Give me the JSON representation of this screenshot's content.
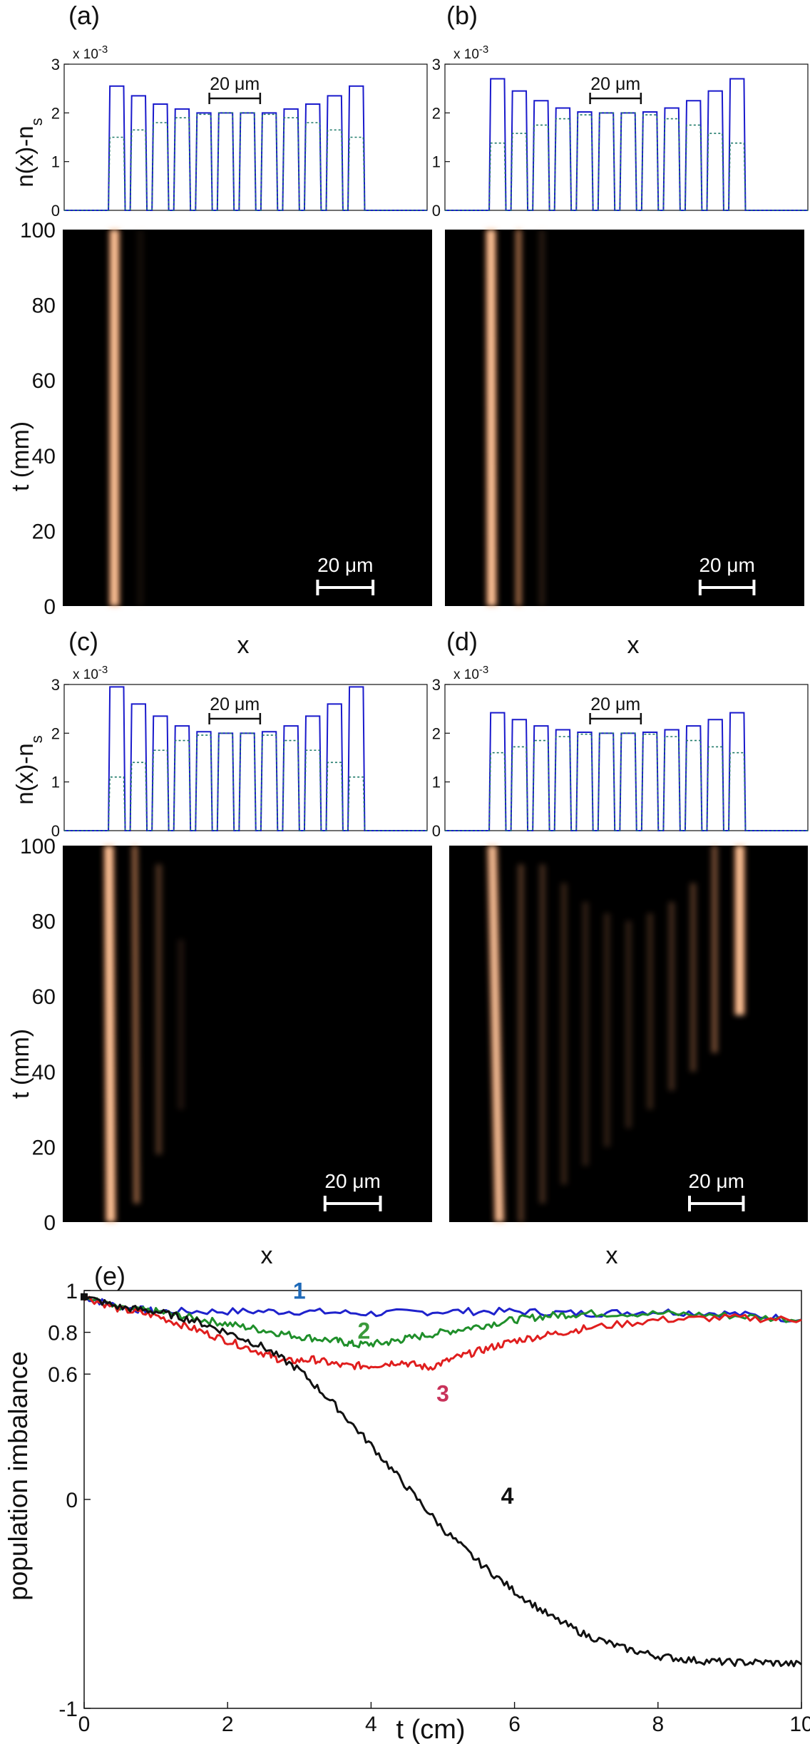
{
  "colors": {
    "profile_line": "#1a1acc",
    "profile_dash": "#1f7a6a",
    "heat_bg": "#000000",
    "glow": "#f4a06a",
    "glow_core": "#ffe0c0",
    "scale_bar_dark": "#111111",
    "scale_bar_light": "#ffffff",
    "series1": "#1f22cc",
    "series2": "#1f8f2a",
    "series3": "#e01e1e",
    "series4": "#111111",
    "label1": "#1f6ab8",
    "label2": "#3a9a3a",
    "label3": "#c8325a",
    "label4": "#111111"
  },
  "chart_data": [
    {
      "id": "a",
      "panel_label": "(a)",
      "type": "line",
      "ylabel": "n(x)-n",
      "ylabel_sub": "s",
      "exponent_label": "x 10",
      "exponent_power": "-3",
      "yticks": [
        "0",
        "1",
        "2",
        "3"
      ],
      "ylim": [
        0,
        3
      ],
      "xlim": [
        0,
        100
      ],
      "scale_bar_label": "20 μm",
      "scale_bar_x": [
        40,
        54
      ],
      "series": [
        {
          "name": "solid",
          "guides": [
            14.5,
            20.5,
            26.5,
            32.5,
            38.5,
            44.5,
            50.5,
            56.5,
            62.5,
            68.5,
            74.5,
            80.5
          ],
          "heights": [
            2.55,
            2.35,
            2.18,
            2.08,
            2.0,
            2.0,
            2.0,
            2.0,
            2.08,
            2.18,
            2.35,
            2.55
          ]
        },
        {
          "name": "dashed",
          "guides": [
            14.5,
            20.5,
            26.5,
            32.5,
            38.5,
            44.5,
            50.5,
            56.5,
            62.5,
            68.5,
            74.5,
            80.5
          ],
          "heights": [
            1.5,
            1.65,
            1.8,
            1.9,
            1.97,
            2.0,
            2.0,
            1.97,
            1.9,
            1.8,
            1.65,
            1.5
          ]
        }
      ]
    },
    {
      "id": "b",
      "panel_label": "(b)",
      "type": "line",
      "exponent_label": "x 10",
      "exponent_power": "-3",
      "yticks": [
        "0",
        "1",
        "2",
        "3"
      ],
      "ylim": [
        0,
        3
      ],
      "xlim": [
        0,
        100
      ],
      "scale_bar_label": "20 μm",
      "scale_bar_x": [
        40,
        54
      ],
      "series": [
        {
          "name": "solid",
          "guides": [
            14.5,
            20.5,
            26.5,
            32.5,
            38.5,
            44.5,
            50.5,
            56.5,
            62.5,
            68.5,
            74.5,
            80.5
          ],
          "heights": [
            2.7,
            2.45,
            2.25,
            2.1,
            2.02,
            2.0,
            2.0,
            2.02,
            2.1,
            2.25,
            2.45,
            2.7
          ]
        },
        {
          "name": "dashed",
          "guides": [
            14.5,
            20.5,
            26.5,
            32.5,
            38.5,
            44.5,
            50.5,
            56.5,
            62.5,
            68.5,
            74.5,
            80.5
          ],
          "heights": [
            1.38,
            1.58,
            1.75,
            1.88,
            1.96,
            2.0,
            2.0,
            1.96,
            1.88,
            1.75,
            1.58,
            1.38
          ]
        }
      ]
    },
    {
      "id": "c",
      "panel_label": "(c)",
      "type": "line",
      "ylabel": "n(x)-n",
      "ylabel_sub": "s",
      "exponent_label": "x 10",
      "exponent_power": "-3",
      "yticks": [
        "0",
        "1",
        "2",
        "3"
      ],
      "ylim": [
        0,
        3
      ],
      "xlim": [
        0,
        100
      ],
      "scale_bar_label": "20 μm",
      "scale_bar_x": [
        40,
        54
      ],
      "series": [
        {
          "name": "solid",
          "guides": [
            14.5,
            20.5,
            26.5,
            32.5,
            38.5,
            44.5,
            50.5,
            56.5,
            62.5,
            68.5,
            74.5,
            80.5
          ],
          "heights": [
            2.95,
            2.6,
            2.35,
            2.15,
            2.03,
            2.0,
            2.0,
            2.03,
            2.15,
            2.35,
            2.6,
            2.95
          ]
        },
        {
          "name": "dashed",
          "guides": [
            14.5,
            20.5,
            26.5,
            32.5,
            38.5,
            44.5,
            50.5,
            56.5,
            62.5,
            68.5,
            74.5,
            80.5
          ],
          "heights": [
            1.1,
            1.4,
            1.65,
            1.85,
            1.96,
            2.0,
            2.0,
            1.96,
            1.85,
            1.65,
            1.4,
            1.1
          ]
        }
      ]
    },
    {
      "id": "d",
      "panel_label": "(d)",
      "type": "line",
      "exponent_label": "x 10",
      "exponent_power": "-3",
      "yticks": [
        "0",
        "1",
        "2",
        "3"
      ],
      "ylim": [
        0,
        3
      ],
      "xlim": [
        0,
        100
      ],
      "scale_bar_label": "20 μm",
      "scale_bar_x": [
        40,
        54
      ],
      "series": [
        {
          "name": "solid",
          "guides": [
            14.5,
            20.5,
            26.5,
            32.5,
            38.5,
            44.5,
            50.5,
            56.5,
            62.5,
            68.5,
            74.5,
            80.5
          ],
          "heights": [
            2.42,
            2.28,
            2.15,
            2.07,
            2.02,
            2.0,
            2.0,
            2.02,
            2.07,
            2.15,
            2.28,
            2.42
          ]
        },
        {
          "name": "dashed",
          "guides": [
            14.5,
            20.5,
            26.5,
            32.5,
            38.5,
            44.5,
            50.5,
            56.5,
            62.5,
            68.5,
            74.5,
            80.5
          ],
          "heights": [
            1.6,
            1.72,
            1.85,
            1.93,
            1.98,
            2.0,
            2.0,
            1.98,
            1.93,
            1.85,
            1.72,
            1.6
          ]
        }
      ]
    },
    {
      "id": "a-heat",
      "type": "heatmap",
      "ylabel": "t (mm)",
      "yticks": [
        "0",
        "20",
        "40",
        "60",
        "80",
        "100"
      ],
      "ylim": [
        0,
        100
      ],
      "xlim": [
        0,
        100
      ],
      "scale_bar_label": "20 μm",
      "scale_bar_x": [
        69,
        84
      ],
      "beams": [
        {
          "segments": [
            [
              0,
              100,
              14,
              14,
              1.0
            ]
          ]
        },
        {
          "segments": [
            [
              0,
              100,
              21,
              21,
              0.08
            ]
          ]
        }
      ]
    },
    {
      "id": "b-heat",
      "type": "heatmap",
      "yticks": [],
      "ylim": [
        0,
        100
      ],
      "xlim": [
        0,
        100
      ],
      "scale_bar_label": "20 μm",
      "scale_bar_x": [
        71,
        86
      ],
      "beams": [
        {
          "segments": [
            [
              0,
              100,
              13,
              12.8,
              1.0
            ]
          ]
        },
        {
          "segments": [
            [
              0,
              100,
              20.5,
              20.5,
              0.6
            ]
          ]
        },
        {
          "segments": [
            [
              0,
              100,
              27,
              27,
              0.15
            ]
          ]
        }
      ]
    },
    {
      "id": "c-heat",
      "type": "heatmap",
      "xlabel": "x",
      "ylabel": "t (mm)",
      "yticks": [
        "0",
        "20",
        "40",
        "60",
        "80",
        "100"
      ],
      "ylim": [
        0,
        100
      ],
      "xlim": [
        0,
        100
      ],
      "scale_bar_label": "20 μm",
      "scale_bar_x": [
        71,
        86
      ],
      "beams": [
        {
          "segments": [
            [
              0,
              100,
              13,
              12.5,
              1.0
            ]
          ]
        },
        {
          "segments": [
            [
              5,
              100,
              20,
              19.5,
              0.55
            ]
          ]
        },
        {
          "segments": [
            [
              18,
              95,
              26,
              26,
              0.3
            ]
          ]
        },
        {
          "segments": [
            [
              30,
              75,
              32,
              32,
              0.12
            ]
          ]
        }
      ]
    },
    {
      "id": "d-heat",
      "type": "heatmap",
      "xlabel": "x",
      "yticks": [],
      "ylim": [
        0,
        100
      ],
      "xlim": [
        0,
        100
      ],
      "scale_bar_label": "20 μm",
      "scale_bar_x": [
        67,
        82
      ],
      "beams": [
        {
          "segments": [
            [
              0,
              100,
              14,
              12,
              0.9
            ]
          ]
        },
        {
          "segments": [
            [
              0,
              95,
              20,
              20,
              0.3
            ]
          ]
        },
        {
          "segments": [
            [
              5,
              95,
              26,
              26,
              0.25
            ]
          ]
        },
        {
          "segments": [
            [
              10,
              90,
              32,
              32,
              0.2
            ]
          ]
        },
        {
          "segments": [
            [
              15,
              85,
              38,
              38,
              0.18
            ]
          ]
        },
        {
          "segments": [
            [
              20,
              82,
              44,
              44,
              0.18
            ]
          ]
        },
        {
          "segments": [
            [
              25,
              80,
              50,
              50,
              0.18
            ]
          ]
        },
        {
          "segments": [
            [
              30,
              82,
              56,
              56,
              0.2
            ]
          ]
        },
        {
          "segments": [
            [
              35,
              85,
              62,
              62,
              0.25
            ]
          ]
        },
        {
          "segments": [
            [
              40,
              90,
              68,
              68,
              0.3
            ]
          ]
        },
        {
          "segments": [
            [
              45,
              100,
              74,
              74,
              0.45
            ]
          ]
        },
        {
          "segments": [
            [
              55,
              100,
              81,
              81,
              1.0
            ]
          ]
        }
      ]
    },
    {
      "id": "e",
      "panel_label": "(e)",
      "type": "line",
      "xlabel": "t (cm)",
      "ylabel": "population imbalance",
      "xlim": [
        0,
        10
      ],
      "ylim": [
        -1,
        1
      ],
      "xticks": [
        "0",
        "2",
        "4",
        "6",
        "8",
        "10"
      ],
      "yticks": [
        {
          "value": -1,
          "label": "-1"
        },
        {
          "value": 0,
          "label": "0"
        },
        {
          "value": 0.6,
          "label": "0.6"
        },
        {
          "value": 0.8,
          "label": "0.8"
        },
        {
          "value": 1,
          "label": "1"
        }
      ],
      "series": [
        {
          "name": "1",
          "label": "1",
          "label_at": [
            3.0,
            0.96
          ],
          "x": [
            0,
            0.5,
            1.0,
            2.0,
            3.0,
            4.0,
            5.0,
            6.0,
            7.0,
            8.0,
            9.0,
            10.0
          ],
          "y": [
            0.97,
            0.92,
            0.9,
            0.9,
            0.9,
            0.89,
            0.9,
            0.9,
            0.89,
            0.9,
            0.89,
            0.86
          ]
        },
        {
          "name": "2",
          "label": "2",
          "label_at": [
            3.9,
            0.77
          ],
          "x": [
            0,
            0.5,
            1.0,
            1.5,
            2.0,
            2.5,
            3.0,
            3.5,
            3.8,
            4.2,
            4.5,
            5.0,
            5.5,
            6.0,
            6.5,
            7.0,
            8.0,
            9.0,
            10.0
          ],
          "y": [
            0.97,
            0.91,
            0.9,
            0.87,
            0.84,
            0.81,
            0.78,
            0.76,
            0.74,
            0.75,
            0.77,
            0.8,
            0.83,
            0.86,
            0.88,
            0.89,
            0.89,
            0.88,
            0.86
          ]
        },
        {
          "name": "3",
          "label": "3",
          "label_at": [
            5.0,
            0.47
          ],
          "x": [
            0,
            0.5,
            1.0,
            1.5,
            2.0,
            2.5,
            2.8,
            3.2,
            3.6,
            4.0,
            4.4,
            4.8,
            5.2,
            5.6,
            6.0,
            6.5,
            7.0,
            8.0,
            9.0,
            10.0
          ],
          "y": [
            0.97,
            0.91,
            0.88,
            0.82,
            0.76,
            0.7,
            0.66,
            0.67,
            0.64,
            0.64,
            0.66,
            0.63,
            0.68,
            0.72,
            0.76,
            0.79,
            0.82,
            0.86,
            0.87,
            0.86
          ]
        },
        {
          "name": "4",
          "label": "4",
          "label_at": [
            5.9,
            -0.02
          ],
          "x": [
            0,
            0.5,
            1.0,
            1.5,
            2.0,
            2.5,
            3.0,
            3.5,
            4.0,
            4.5,
            5.0,
            5.5,
            6.0,
            6.5,
            7.0,
            7.5,
            8.0,
            8.5,
            9.0,
            9.5,
            10.0
          ],
          "y": [
            0.97,
            0.92,
            0.9,
            0.86,
            0.8,
            0.73,
            0.62,
            0.45,
            0.26,
            0.06,
            -0.14,
            -0.3,
            -0.44,
            -0.56,
            -0.65,
            -0.71,
            -0.75,
            -0.77,
            -0.78,
            -0.78,
            -0.79
          ]
        }
      ]
    }
  ]
}
